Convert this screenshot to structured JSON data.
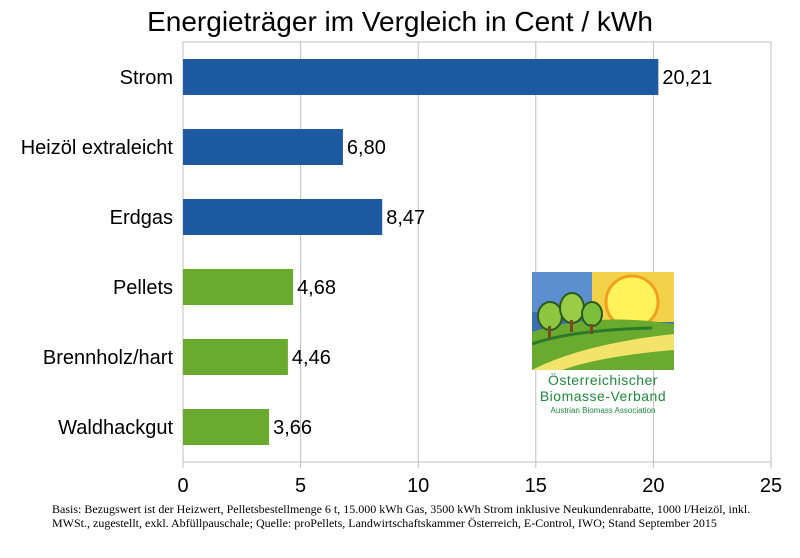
{
  "chart_data": {
    "type": "bar",
    "orientation": "horizontal",
    "title": "Energieträger im Vergleich in Cent / kWh",
    "categories": [
      "Strom",
      "Heizöl extraleicht",
      "Erdgas",
      "Pellets",
      "Brennholz/hart",
      "Waldhackgut"
    ],
    "values": [
      20.21,
      6.8,
      8.47,
      4.68,
      4.46,
      3.66
    ],
    "value_labels": [
      "20,21",
      "6,80",
      "8,47",
      "4,68",
      "4,46",
      "3,66"
    ],
    "bar_colors": [
      "#1e5aa0",
      "#1e5aa0",
      "#1e5aa0",
      "#6aaa2e",
      "#6aaa2e",
      "#6aaa2e"
    ],
    "xlim": [
      0,
      25
    ],
    "xticks": [
      0,
      5,
      10,
      15,
      20,
      25
    ],
    "xtick_labels": [
      "0",
      "5",
      "10",
      "15",
      "20",
      "25"
    ],
    "xlabel": "",
    "ylabel": "",
    "grid": "vertical",
    "legend": "none"
  },
  "logo": {
    "line1": "Österreichischer",
    "line2": "Biomasse-Verband",
    "line3": "Austrian Biomass Association"
  },
  "footnote": "Basis: Bezugswert ist der Heizwert, Pelletsbestellmenge 6 t, 15.000 kWh Gas, 3500 kWh Strom inklusive Neukundenrabatte, 1000 l/Heizöl, inkl. MWSt., zugestellt, exkl. Abfüllpauschale; Quelle: proPellets, Landwirtschaftskammer Österreich, E-Control, IWO; Stand September 2015"
}
